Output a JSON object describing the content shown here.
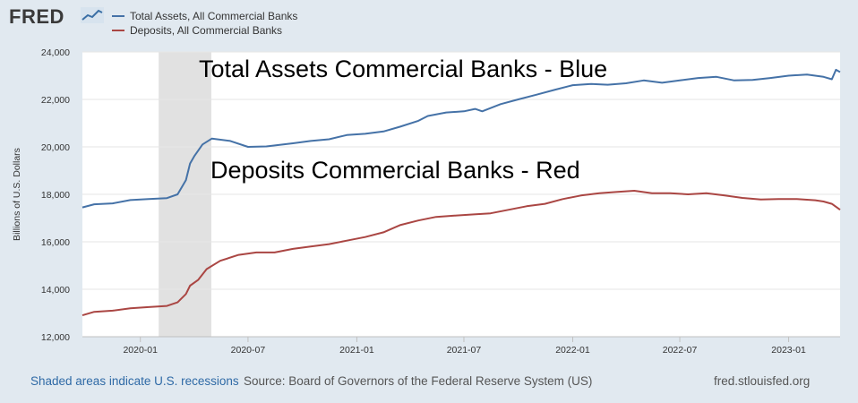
{
  "header": {
    "logo_text": "FRED",
    "logo_icon": "trend-line-icon"
  },
  "legend": [
    {
      "label": "Total Assets, All Commercial Banks",
      "color": "#4572a7"
    },
    {
      "label": "Deposits, All Commercial Banks",
      "color": "#aa4643"
    }
  ],
  "footer": {
    "recessions_link": "Shaded areas indicate U.S. recessions",
    "source": "Source: Board of Governors of the Federal Reserve System (US)",
    "url": "fred.stlouisfed.org"
  },
  "chart_data": {
    "type": "line",
    "title": "",
    "xlabel": "",
    "ylabel": "Billions of U.S. Dollars",
    "xlim": [
      "2019-09-25",
      "2023-03-29"
    ],
    "ylim": [
      12000,
      24000
    ],
    "yticks": [
      12000,
      14000,
      16000,
      18000,
      20000,
      22000,
      24000
    ],
    "ytick_labels": [
      "12,000",
      "14,000",
      "16,000",
      "18,000",
      "20,000",
      "22,000",
      "24,000"
    ],
    "xticks": [
      "2020-01-01",
      "2020-07-01",
      "2021-01-01",
      "2021-07-01",
      "2022-01-01",
      "2022-07-01",
      "2023-01-01"
    ],
    "xtick_labels": [
      "2020-01",
      "2020-07",
      "2021-01",
      "2021-07",
      "2022-01",
      "2022-07",
      "2023-01"
    ],
    "grid": "horizontal",
    "recession_shading": {
      "start": "2020-02-01",
      "end": "2020-04-30"
    },
    "annotations": [
      {
        "text": "Total Assets Commercial Banks - Blue"
      },
      {
        "text": "Deposits Commercial Banks - Red"
      }
    ],
    "series": [
      {
        "name": "Total Assets, All Commercial Banks",
        "color": "#4572a7",
        "points": [
          [
            "2019-09-25",
            17450
          ],
          [
            "2019-10-15",
            17580
          ],
          [
            "2019-11-15",
            17620
          ],
          [
            "2019-12-15",
            17760
          ],
          [
            "2020-01-15",
            17800
          ],
          [
            "2020-02-15",
            17840
          ],
          [
            "2020-03-04",
            18000
          ],
          [
            "2020-03-18",
            18600
          ],
          [
            "2020-03-25",
            19300
          ],
          [
            "2020-04-01",
            19600
          ],
          [
            "2020-04-15",
            20100
          ],
          [
            "2020-05-01",
            20350
          ],
          [
            "2020-06-01",
            20250
          ],
          [
            "2020-07-01",
            20000
          ],
          [
            "2020-08-01",
            20020
          ],
          [
            "2020-09-15",
            20150
          ],
          [
            "2020-10-15",
            20250
          ],
          [
            "2020-11-15",
            20320
          ],
          [
            "2020-12-15",
            20500
          ],
          [
            "2021-01-15",
            20550
          ],
          [
            "2021-02-15",
            20650
          ],
          [
            "2021-03-15",
            20850
          ],
          [
            "2021-04-15",
            21100
          ],
          [
            "2021-05-01",
            21300
          ],
          [
            "2021-06-01",
            21450
          ],
          [
            "2021-07-01",
            21500
          ],
          [
            "2021-07-20",
            21600
          ],
          [
            "2021-08-01",
            21500
          ],
          [
            "2021-09-01",
            21800
          ],
          [
            "2021-10-01",
            22000
          ],
          [
            "2021-11-01",
            22200
          ],
          [
            "2021-12-01",
            22400
          ],
          [
            "2022-01-01",
            22600
          ],
          [
            "2022-02-01",
            22650
          ],
          [
            "2022-03-01",
            22620
          ],
          [
            "2022-04-01",
            22680
          ],
          [
            "2022-05-01",
            22800
          ],
          [
            "2022-06-01",
            22700
          ],
          [
            "2022-07-01",
            22800
          ],
          [
            "2022-08-01",
            22900
          ],
          [
            "2022-09-01",
            22950
          ],
          [
            "2022-10-01",
            22800
          ],
          [
            "2022-11-01",
            22820
          ],
          [
            "2022-12-01",
            22900
          ],
          [
            "2023-01-01",
            23000
          ],
          [
            "2023-02-01",
            23050
          ],
          [
            "2023-03-01",
            22950
          ],
          [
            "2023-03-15",
            22850
          ],
          [
            "2023-03-22",
            23250
          ],
          [
            "2023-03-29",
            23150
          ]
        ]
      },
      {
        "name": "Deposits, All Commercial Banks",
        "color": "#aa4643",
        "points": [
          [
            "2019-09-25",
            12900
          ],
          [
            "2019-10-15",
            13050
          ],
          [
            "2019-11-15",
            13100
          ],
          [
            "2019-12-15",
            13200
          ],
          [
            "2020-01-15",
            13250
          ],
          [
            "2020-02-15",
            13300
          ],
          [
            "2020-03-04",
            13450
          ],
          [
            "2020-03-18",
            13800
          ],
          [
            "2020-03-25",
            14150
          ],
          [
            "2020-04-08",
            14400
          ],
          [
            "2020-04-22",
            14850
          ],
          [
            "2020-05-15",
            15200
          ],
          [
            "2020-06-15",
            15450
          ],
          [
            "2020-07-15",
            15550
          ],
          [
            "2020-08-15",
            15550
          ],
          [
            "2020-09-15",
            15700
          ],
          [
            "2020-10-15",
            15800
          ],
          [
            "2020-11-15",
            15900
          ],
          [
            "2020-12-15",
            16050
          ],
          [
            "2021-01-15",
            16200
          ],
          [
            "2021-02-15",
            16400
          ],
          [
            "2021-03-15",
            16700
          ],
          [
            "2021-04-15",
            16900
          ],
          [
            "2021-05-15",
            17050
          ],
          [
            "2021-06-15",
            17100
          ],
          [
            "2021-07-15",
            17150
          ],
          [
            "2021-08-15",
            17200
          ],
          [
            "2021-09-15",
            17350
          ],
          [
            "2021-10-15",
            17500
          ],
          [
            "2021-11-15",
            17600
          ],
          [
            "2021-12-15",
            17800
          ],
          [
            "2022-01-15",
            17950
          ],
          [
            "2022-02-15",
            18050
          ],
          [
            "2022-03-15",
            18100
          ],
          [
            "2022-04-15",
            18150
          ],
          [
            "2022-05-15",
            18050
          ],
          [
            "2022-06-15",
            18050
          ],
          [
            "2022-07-15",
            18000
          ],
          [
            "2022-08-15",
            18050
          ],
          [
            "2022-09-15",
            17950
          ],
          [
            "2022-10-15",
            17850
          ],
          [
            "2022-11-15",
            17780
          ],
          [
            "2022-12-15",
            17800
          ],
          [
            "2023-01-15",
            17800
          ],
          [
            "2023-02-15",
            17750
          ],
          [
            "2023-03-01",
            17700
          ],
          [
            "2023-03-15",
            17600
          ],
          [
            "2023-03-29",
            17350
          ]
        ]
      }
    ]
  }
}
